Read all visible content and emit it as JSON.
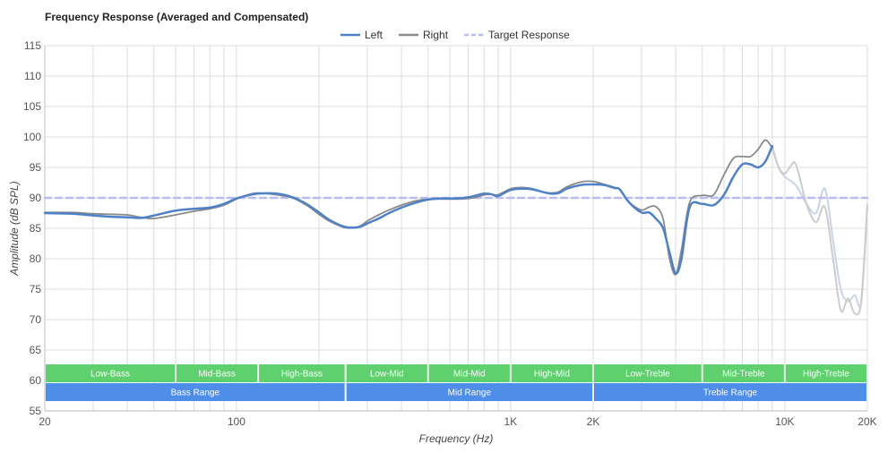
{
  "title": "Frequency Response (Averaged and Compensated)",
  "chart_data": {
    "type": "line",
    "xscale": "log",
    "xlim": [
      20,
      20000
    ],
    "ylim": [
      55,
      115
    ],
    "xlabel": "Frequency (Hz)",
    "ylabel": "Amplitude (dB SPL)",
    "grid": true,
    "legend_position": "top-center",
    "xticks": [
      {
        "v": 20,
        "label": "20"
      },
      {
        "v": 100,
        "label": "100"
      },
      {
        "v": 1000,
        "label": "1K"
      },
      {
        "v": 2000,
        "label": "2K"
      },
      {
        "v": 10000,
        "label": "10K"
      },
      {
        "v": 20000,
        "label": "20K"
      }
    ],
    "yticks": [
      115,
      110,
      105,
      100,
      95,
      90,
      85,
      80,
      75,
      70,
      65,
      60,
      55
    ],
    "series": [
      {
        "name": "Left",
        "color": "#4f81c7",
        "style": "solid",
        "x": [
          20,
          25,
          30,
          35,
          40,
          45,
          50,
          60,
          70,
          80,
          90,
          100,
          110,
          120,
          140,
          160,
          180,
          200,
          220,
          250,
          280,
          300,
          330,
          360,
          400,
          450,
          500,
          560,
          630,
          700,
          750,
          800,
          850,
          900,
          1000,
          1100,
          1200,
          1300,
          1400,
          1500,
          1600,
          1800,
          2000,
          2200,
          2400,
          2500,
          2700,
          3000,
          3200,
          3400,
          3600,
          3800,
          4000,
          4200,
          4500,
          5000,
          5500,
          6000,
          6500,
          7000,
          7500,
          8000,
          8500,
          9000
        ],
        "y": [
          87.5,
          87.4,
          87.1,
          86.9,
          86.8,
          86.7,
          87.1,
          87.9,
          88.2,
          88.4,
          89.0,
          89.9,
          90.4,
          90.7,
          90.7,
          90.1,
          89.0,
          87.6,
          86.3,
          85.2,
          85.2,
          85.8,
          86.6,
          87.5,
          88.4,
          89.2,
          89.7,
          89.9,
          89.9,
          90.1,
          90.4,
          90.7,
          90.6,
          90.3,
          91.3,
          91.5,
          91.4,
          91.0,
          90.7,
          90.8,
          91.5,
          92.1,
          92.2,
          92.1,
          91.6,
          91.4,
          89.3,
          87.6,
          87.6,
          86.5,
          85.0,
          81.0,
          77.6,
          80.0,
          88.5,
          89.0,
          88.8,
          90.5,
          93.5,
          95.5,
          95.5,
          95.0,
          96.0,
          98.5
        ]
      },
      {
        "name": "Right",
        "color": "#8a8a8a",
        "style": "solid",
        "x": [
          20,
          25,
          30,
          35,
          40,
          45,
          50,
          60,
          70,
          80,
          90,
          100,
          110,
          120,
          140,
          160,
          180,
          200,
          220,
          250,
          280,
          300,
          330,
          360,
          400,
          450,
          500,
          560,
          630,
          700,
          750,
          800,
          850,
          900,
          1000,
          1100,
          1200,
          1300,
          1400,
          1500,
          1600,
          1800,
          2000,
          2200,
          2400,
          2500,
          2700,
          3000,
          3200,
          3400,
          3600,
          3800,
          4000,
          4200,
          4500,
          5000,
          5500,
          6000,
          6500,
          7000,
          7500,
          8000,
          8500,
          9000
        ],
        "y": [
          87.6,
          87.6,
          87.4,
          87.3,
          87.2,
          86.8,
          86.6,
          87.2,
          87.8,
          88.2,
          88.8,
          89.8,
          90.5,
          90.8,
          90.5,
          90.0,
          88.8,
          87.3,
          86.1,
          85.1,
          85.3,
          86.2,
          87.2,
          88.0,
          88.8,
          89.5,
          89.8,
          89.8,
          89.8,
          89.9,
          90.1,
          90.5,
          90.6,
          90.5,
          91.5,
          91.7,
          91.5,
          91.0,
          90.8,
          91.0,
          91.8,
          92.6,
          92.7,
          92.2,
          91.7,
          91.4,
          89.3,
          88.0,
          88.5,
          88.5,
          86.5,
          80.0,
          77.4,
          81.5,
          89.3,
          90.4,
          90.5,
          93.8,
          96.5,
          96.8,
          96.8,
          98.0,
          99.5,
          98.2
        ]
      },
      {
        "name": "Target Response",
        "color": "#b8bcf0",
        "style": "dashed",
        "x": [
          20,
          20000
        ],
        "y": [
          90,
          90
        ]
      }
    ],
    "faded_series": [
      {
        "color": "#c9d4e6",
        "x": [
          9000,
          9500,
          10000,
          11000,
          12000,
          13000,
          14000,
          15000,
          16000,
          17000,
          18000,
          19000,
          20000
        ],
        "y": [
          98.5,
          95.0,
          93.5,
          92.0,
          89.0,
          87.5,
          91.5,
          83.0,
          75.0,
          73.0,
          74.0,
          73.0,
          88.5
        ]
      },
      {
        "color": "#cccccc",
        "x": [
          9000,
          9500,
          10000,
          10500,
          11000,
          12000,
          13000,
          14000,
          15000,
          16000,
          17000,
          18000,
          19000,
          20000
        ],
        "y": [
          98.2,
          95.0,
          94.0,
          95.2,
          95.4,
          89.0,
          86.0,
          88.5,
          80.0,
          71.5,
          73.5,
          71.0,
          73.0,
          89.0
        ]
      }
    ],
    "bands_top": [
      {
        "label": "Low-Bass",
        "from": 20,
        "to": 60
      },
      {
        "label": "Mid-Bass",
        "from": 60,
        "to": 120
      },
      {
        "label": "High-Bass",
        "from": 120,
        "to": 250
      },
      {
        "label": "Low-Mid",
        "from": 250,
        "to": 500
      },
      {
        "label": "Mid-Mid",
        "from": 500,
        "to": 1000
      },
      {
        "label": "High-Mid",
        "from": 1000,
        "to": 2000
      },
      {
        "label": "Low-Treble",
        "from": 2000,
        "to": 5000
      },
      {
        "label": "Mid-Treble",
        "from": 5000,
        "to": 10000
      },
      {
        "label": "High-Treble",
        "from": 10000,
        "to": 20000
      }
    ],
    "bands_bottom": [
      {
        "label": "Bass Range",
        "from": 20,
        "to": 250
      },
      {
        "label": "Mid Range",
        "from": 250,
        "to": 2000
      },
      {
        "label": "Treble Range",
        "from": 2000,
        "to": 20000
      }
    ],
    "band_colors": {
      "top": "#5fd06e",
      "bottom": "#4f8ee8"
    }
  }
}
